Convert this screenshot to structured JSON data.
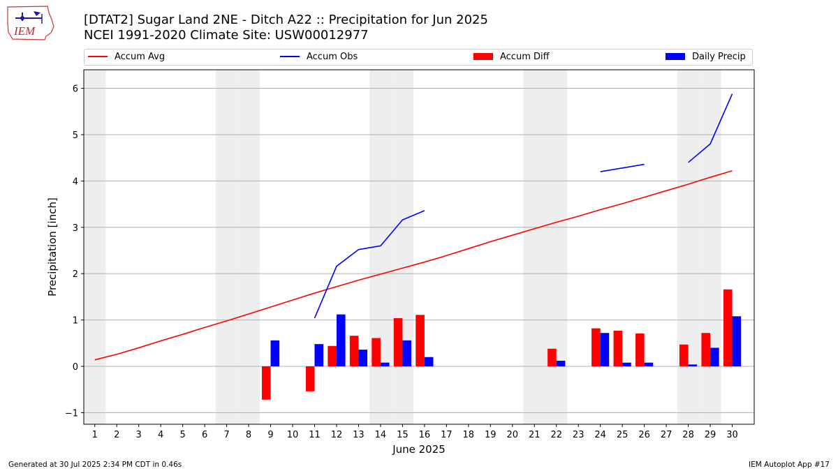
{
  "header": {
    "logo_text": "IEM",
    "title_line1": "[DTAT2] Sugar Land 2NE - Ditch A22 :: Precipitation for Jun 2025",
    "title_line2": "NCEI 1991-2020 Climate Site: USW00012977"
  },
  "footer": {
    "left": "Generated at 30 Jul 2025 2:34 PM CDT in 0.46s",
    "right": "IEM Autoplot App #17"
  },
  "colors": {
    "avg": "#ff0000",
    "obs": "#0000ff",
    "diff": "#ff0000",
    "daily": "#0000ff",
    "weekend": "#eeeeee",
    "grid": "#b0b0b0"
  },
  "chart_data": {
    "type": "bar",
    "xlabel": "June 2025",
    "ylabel": "Precipitation [inch]",
    "xlim": [
      0.5,
      31
    ],
    "ylim": [
      -1.25,
      6.4
    ],
    "yticks": [
      -1,
      0,
      1,
      2,
      3,
      4,
      5,
      6
    ],
    "grid": true,
    "legend_placement": "top",
    "days": [
      1,
      2,
      3,
      4,
      5,
      6,
      7,
      8,
      9,
      10,
      11,
      12,
      13,
      14,
      15,
      16,
      17,
      18,
      19,
      20,
      21,
      22,
      23,
      24,
      25,
      26,
      27,
      28,
      29,
      30
    ],
    "weekend_days": [
      1,
      7,
      8,
      14,
      15,
      21,
      22,
      28,
      29
    ],
    "series": [
      {
        "name": "Accum Avg",
        "kind": "line",
        "values": [
          0.14,
          0.26,
          0.4,
          0.55,
          0.69,
          0.84,
          0.98,
          1.13,
          1.28,
          1.43,
          1.58,
          1.72,
          1.86,
          1.99,
          2.12,
          2.25,
          2.39,
          2.54,
          2.69,
          2.83,
          2.97,
          3.11,
          3.24,
          3.38,
          3.51,
          3.65,
          3.79,
          3.93,
          4.08,
          4.22
        ]
      },
      {
        "name": "Accum Obs",
        "kind": "line",
        "values": [
          null,
          null,
          null,
          null,
          null,
          null,
          null,
          null,
          null,
          null,
          1.04,
          2.16,
          2.52,
          2.6,
          3.16,
          3.36,
          null,
          null,
          null,
          null,
          null,
          null,
          null,
          4.2,
          4.28,
          4.36,
          null,
          4.4,
          4.8,
          5.88
        ]
      },
      {
        "name": "Accum Diff",
        "kind": "bar",
        "values": [
          null,
          null,
          null,
          null,
          null,
          null,
          null,
          null,
          -0.72,
          null,
          -0.54,
          0.44,
          0.66,
          0.61,
          1.04,
          1.11,
          null,
          null,
          null,
          null,
          null,
          0.38,
          null,
          0.82,
          0.77,
          0.71,
          null,
          0.47,
          0.72,
          1.66
        ]
      },
      {
        "name": "Daily Precip",
        "kind": "bar",
        "values": [
          null,
          null,
          null,
          null,
          null,
          null,
          null,
          null,
          0.56,
          null,
          0.48,
          1.12,
          0.36,
          0.08,
          0.56,
          0.2,
          null,
          null,
          null,
          null,
          null,
          0.12,
          null,
          0.72,
          0.08,
          0.08,
          null,
          0.04,
          0.4,
          1.08
        ]
      }
    ]
  }
}
